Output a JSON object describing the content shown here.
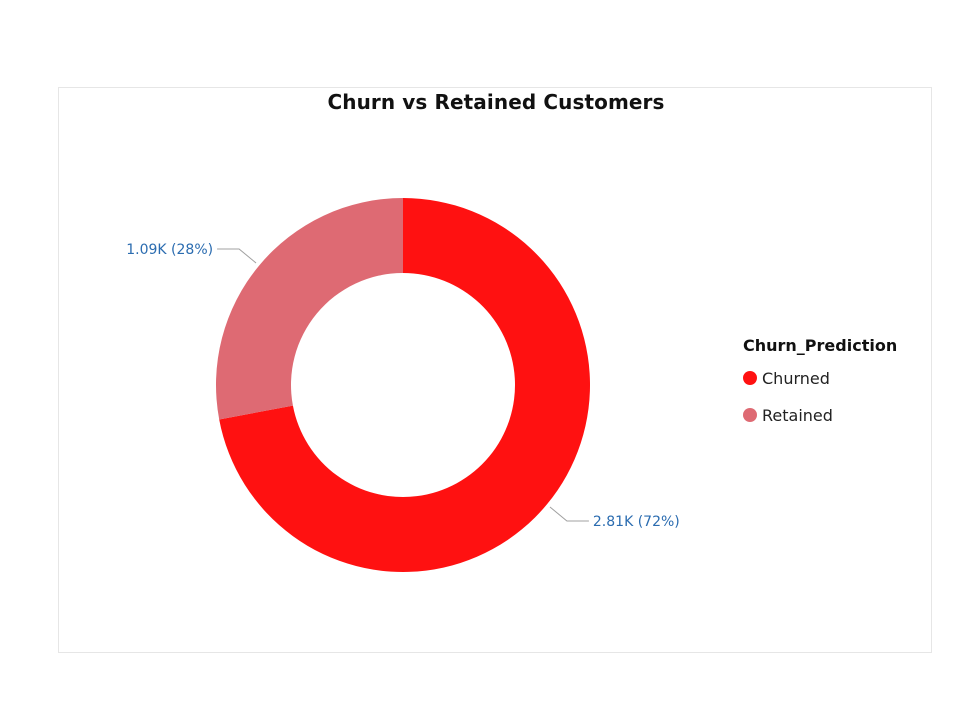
{
  "chart_data": {
    "type": "donut",
    "title": "Churn vs Retained Customers",
    "legend_title": "Churn_Prediction",
    "legend_position": "right",
    "slices": [
      {
        "name": "Churned",
        "value": 2810,
        "percent": 72,
        "label": "2.81K (72%)",
        "color": "#ff1111"
      },
      {
        "name": "Retained",
        "value": 1090,
        "percent": 28,
        "label": "1.09K (28%)",
        "color": "#de6a73"
      }
    ]
  }
}
